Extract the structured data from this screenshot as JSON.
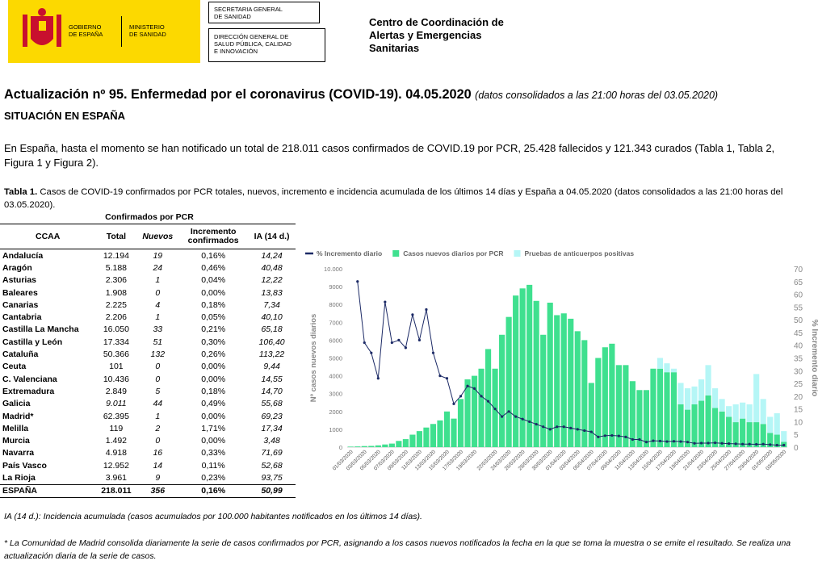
{
  "header": {
    "gobierno": [
      "GOBIERNO",
      "DE ESPAÑA"
    ],
    "ministerio": [
      "MINISTERIO",
      "DE SANIDAD"
    ],
    "box1": [
      "SECRETARIA GENERAL",
      "DE SANIDAD"
    ],
    "box2": [
      "DIRECCIÓN GENERAL DE",
      "SALUD PÚBLICA, CALIDAD",
      "E INNOVACIÓN"
    ],
    "centro": [
      "Centro de Coordinación de",
      "Alertas y Emergencias",
      "Sanitarias"
    ]
  },
  "title": "Actualización nº 95. Enfermedad por el coronavirus (COVID-19). 04.05.2020",
  "title_note": "(datos consolidados a las 21:00 horas del 03.05.2020)",
  "subtitle": "SITUACIÓN EN ESPAÑA",
  "intro": "En España, hasta el momento se han notificado un total de 218.011 casos confirmados de COVID.19 por PCR, 25.428 fallecidos y 121.343 curados (Tabla 1, Tabla 2, Figura 1 y Figura 2).",
  "table": {
    "caption_label": "Tabla 1.",
    "caption": "Casos de COVID-19 confirmados por PCR totales, nuevos, incremento e incidencia acumulada de los últimos 14 días y España a 04.05.2020 (datos consolidados a las 21:00 horas del 03.05.2020).",
    "group_header": "Confirmados por PCR",
    "columns": [
      "CCAA",
      "Total",
      "Nuevos",
      "Incremento confirmados",
      "IA (14 d.)"
    ],
    "rows": [
      [
        "Andalucía",
        "12.194",
        "19",
        "0,16%",
        "14,24"
      ],
      [
        "Aragón",
        "5.188",
        "24",
        "0,46%",
        "40,48"
      ],
      [
        "Asturias",
        "2.306",
        "1",
        "0,04%",
        "12,22"
      ],
      [
        "Baleares",
        "1.908",
        "0",
        "0,00%",
        "13,83"
      ],
      [
        "Canarias",
        "2.225",
        "4",
        "0,18%",
        "7,34"
      ],
      [
        "Cantabria",
        "2.206",
        "1",
        "0,05%",
        "40,10"
      ],
      [
        "Castilla La Mancha",
        "16.050",
        "33",
        "0,21%",
        "65,18"
      ],
      [
        "Castilla y León",
        "17.334",
        "51",
        "0,30%",
        "106,40"
      ],
      [
        "Cataluña",
        "50.366",
        "132",
        "0,26%",
        "113,22"
      ],
      [
        "Ceuta",
        "101",
        "0",
        "0,00%",
        "9,44"
      ],
      [
        "C. Valenciana",
        "10.436",
        "0",
        "0,00%",
        "14,55"
      ],
      [
        "Extremadura",
        "2.849",
        "5",
        "0,18%",
        "14,70"
      ],
      [
        "Galicia",
        "9.011",
        "44",
        "0,49%",
        "55,68"
      ],
      [
        "Madrid*",
        "62.395",
        "1",
        "0,00%",
        "69,23"
      ],
      [
        "Melilla",
        "119",
        "2",
        "1,71%",
        "17,34"
      ],
      [
        "Murcia",
        "1.492",
        "0",
        "0,00%",
        "3,48"
      ],
      [
        "Navarra",
        "4.918",
        "16",
        "0,33%",
        "71,69"
      ],
      [
        "País Vasco",
        "12.952",
        "14",
        "0,11%",
        "52,68"
      ],
      [
        "La Rioja",
        "3.961",
        "9",
        "0,23%",
        "93,75"
      ]
    ],
    "total": [
      "ESPAÑA",
      "218.011",
      "356",
      "0,16%",
      "50,99"
    ]
  },
  "footnotes": [
    "IA (14 d.): Incidencia acumulada (casos acumulados por 100.000 habitantes notificados en los últimos 14 días).",
    "* La Comunidad de Madrid consolida diariamente la serie de casos confirmados por PCR, asignando a los casos nuevos notificados la fecha en la que se toma la muestra o se emite el resultado. Se realiza una actualización diaria de la serie de casos."
  ],
  "chart_data": {
    "type": "bar",
    "y_label": "Nº casos nuevos diarios",
    "y2_label": "% Incremento diario",
    "categories": [
      "01/03/2020",
      null,
      "03/03/2020",
      null,
      "05/03/2020",
      null,
      "07/03/2020",
      null,
      "09/03/2020",
      null,
      "11/03/2020",
      null,
      "13/03/2020",
      null,
      "15/03/2020",
      null,
      "17/03/2020",
      null,
      "19/03/2020",
      null,
      null,
      "22/03/2020",
      null,
      "24/03/2020",
      null,
      "26/03/2020",
      null,
      "28/03/2020",
      null,
      "30/03/2020",
      null,
      "01/04/2020",
      null,
      "03/04/2020",
      null,
      "05/04/2020",
      null,
      "07/04/2020",
      null,
      "09/04/2020",
      null,
      "11/04/2020",
      null,
      "13/04/2020",
      null,
      "15/04/2020",
      null,
      "17/04/2020",
      null,
      "19/04/2020",
      null,
      "21/04/2020",
      null,
      "23/04/2020",
      null,
      "25/04/2020",
      null,
      "27/04/2020",
      null,
      "29/04/2020",
      null,
      "01/05/2020",
      null,
      "03/05/2020"
    ],
    "series": [
      {
        "name": "% Incremento diario",
        "color": "#1c2a66",
        "axis": "y2",
        "kind": "line",
        "values": [
          null,
          65,
          41,
          37,
          27,
          57,
          41,
          42,
          39,
          52,
          42,
          54,
          37,
          28,
          27,
          17,
          20,
          24,
          23,
          20,
          18,
          15,
          12,
          14,
          12,
          11,
          10,
          9,
          8,
          7,
          8,
          8,
          7.5,
          7,
          6.5,
          6,
          4,
          4.5,
          4.6,
          4.4,
          4,
          3,
          3,
          2,
          2.5,
          2.4,
          2.2,
          2.3,
          2.2,
          2,
          1.5,
          1.6,
          1.6,
          1.7,
          1.5,
          1.4,
          1.3,
          1.2,
          1.2,
          1.1,
          1.2,
          1,
          0.8,
          0.8
        ]
      },
      {
        "name": "Casos nuevos diarios por PCR",
        "color": "#3fe08f",
        "kind": "bar",
        "values": [
          30,
          40,
          60,
          70,
          100,
          150,
          200,
          350,
          450,
          700,
          900,
          1100,
          1300,
          1500,
          2000,
          1600,
          2700,
          3800,
          4000,
          4400,
          5500,
          4400,
          6300,
          7300,
          8500,
          8900,
          9100,
          8200,
          6300,
          8100,
          7400,
          7500,
          7200,
          6500,
          6000,
          3600,
          5000,
          5600,
          5800,
          4600,
          4600,
          3700,
          3200,
          3200,
          4400,
          4400,
          4200,
          4200,
          2400,
          2100,
          2400,
          2600,
          2900,
          2200,
          2000,
          1700,
          1400,
          1600,
          1400,
          1400,
          1300,
          800,
          700,
          300
        ]
      },
      {
        "name": "Pruebas de anticuerpos positivas",
        "color": "#b5f6f6",
        "kind": "bar",
        "values": [
          null,
          null,
          null,
          null,
          null,
          null,
          null,
          null,
          null,
          null,
          null,
          null,
          null,
          null,
          null,
          null,
          null,
          null,
          null,
          null,
          null,
          null,
          null,
          null,
          null,
          null,
          null,
          null,
          null,
          null,
          null,
          null,
          null,
          null,
          null,
          null,
          null,
          null,
          null,
          null,
          null,
          null,
          null,
          null,
          null,
          600,
          500,
          200,
          1200,
          1200,
          1000,
          1200,
          1700,
          1100,
          700,
          600,
          1000,
          900,
          1000,
          2700,
          1400,
          900,
          1200,
          600
        ]
      }
    ],
    "ylim": [
      0,
      10000
    ],
    "yticks": [
      0,
      1000,
      2000,
      3000,
      4000,
      5000,
      6000,
      7000,
      8000,
      9000,
      {
        "value": 10000,
        "label": "10.000"
      }
    ],
    "y2lim": [
      0,
      70
    ],
    "y2ticks": [
      0,
      5,
      10,
      15,
      20,
      25,
      30,
      35,
      40,
      45,
      50,
      55,
      60,
      65,
      70
    ]
  }
}
